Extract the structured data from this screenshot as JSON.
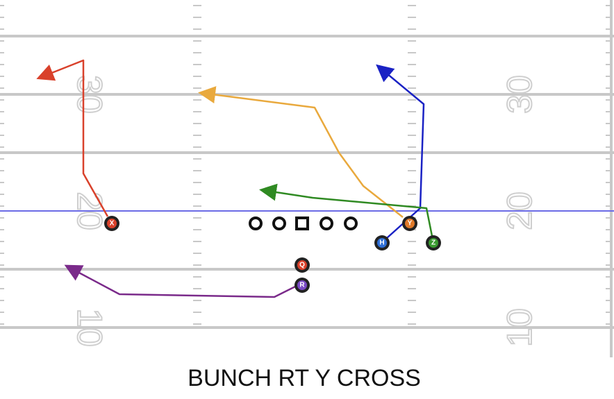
{
  "title": "BUNCH RT Y CROSS",
  "yard_numbers": {
    "left": [
      "30",
      "20",
      "10"
    ],
    "right": [
      "30",
      "20",
      "10"
    ]
  },
  "players": [
    {
      "label": "X"
    },
    {
      "label": "H"
    },
    {
      "label": "Y"
    },
    {
      "label": "Z"
    },
    {
      "label": "Q"
    },
    {
      "label": "R"
    }
  ]
}
